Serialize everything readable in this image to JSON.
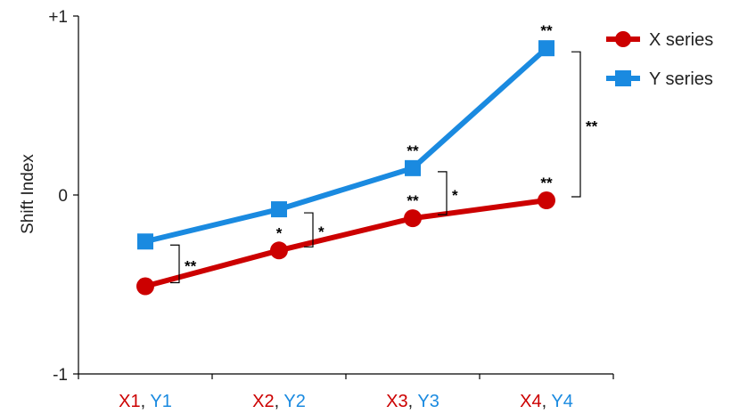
{
  "chart_data": {
    "type": "line",
    "ylabel": "Shift Index",
    "xlabel": "",
    "ylim": [
      -1,
      1
    ],
    "yticks": [
      {
        "value": 1,
        "label": "+1"
      },
      {
        "value": 0,
        "label": "0"
      },
      {
        "value": -1,
        "label": "-1"
      }
    ],
    "categories": [
      {
        "x": "X1",
        "y": "Y1"
      },
      {
        "x": "X2",
        "y": "Y2"
      },
      {
        "x": "X3",
        "y": "Y3"
      },
      {
        "x": "X4",
        "y": "Y4"
      }
    ],
    "category_separator": ", ",
    "series": [
      {
        "name": "X series",
        "color": "#cc0000",
        "marker": "circle",
        "values": [
          -0.51,
          -0.31,
          -0.13,
          -0.03
        ],
        "significance": [
          "",
          "*",
          "**",
          "**"
        ]
      },
      {
        "name": "Y series",
        "color": "#1a8ae0",
        "marker": "square",
        "values": [
          -0.26,
          -0.08,
          0.15,
          0.82
        ],
        "significance": [
          "",
          "",
          "**",
          "**"
        ]
      }
    ],
    "pair_significance": [
      "**",
      "*",
      "*",
      "**"
    ],
    "grid": false,
    "legend_position": "top-right"
  }
}
